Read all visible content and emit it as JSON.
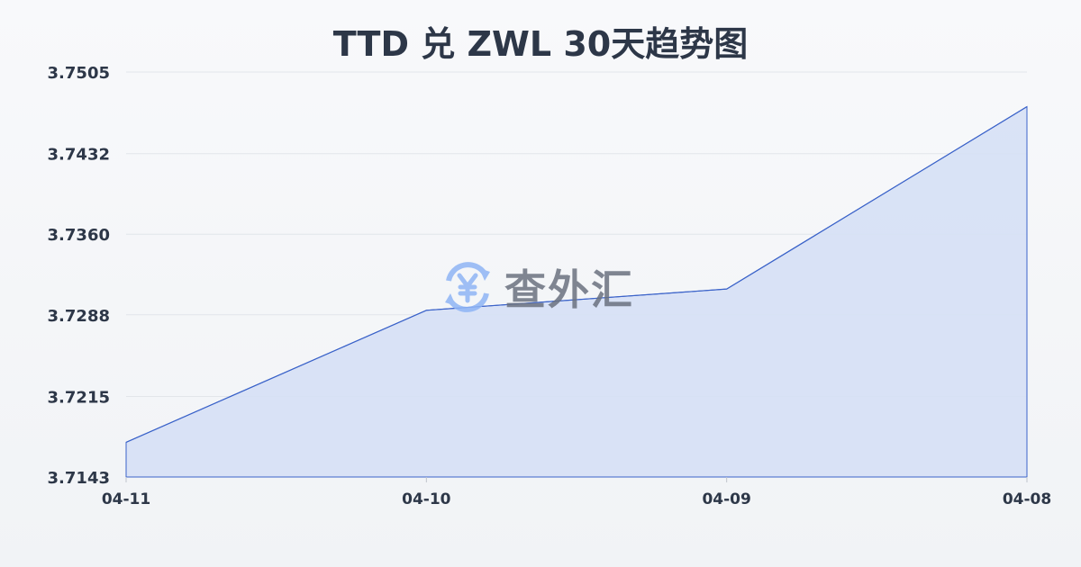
{
  "title": "TTD 兑 ZWL 30天趋势图",
  "watermark": {
    "text": "查外汇",
    "icon": "yen-exchange-icon"
  },
  "colors": {
    "line": "#3b63c9",
    "fill": "#d6e0f5",
    "grid": "#e2e5ea",
    "text": "#2d3748",
    "watermark_icon": "#8fb5f5"
  },
  "chart_data": {
    "type": "area",
    "title": "TTD 兑 ZWL 30天趋势图",
    "categories": [
      "04-11",
      "04-10",
      "04-09",
      "04-08"
    ],
    "series": [
      {
        "values": [
          3.7174,
          3.7292,
          3.7311,
          3.7474
        ]
      }
    ],
    "yticks": [
      "3.7505",
      "3.7432",
      "3.7360",
      "3.7288",
      "3.7215",
      "3.7143"
    ],
    "ylim": [
      3.7143,
      3.7505
    ],
    "grid": true,
    "legend": "none"
  }
}
